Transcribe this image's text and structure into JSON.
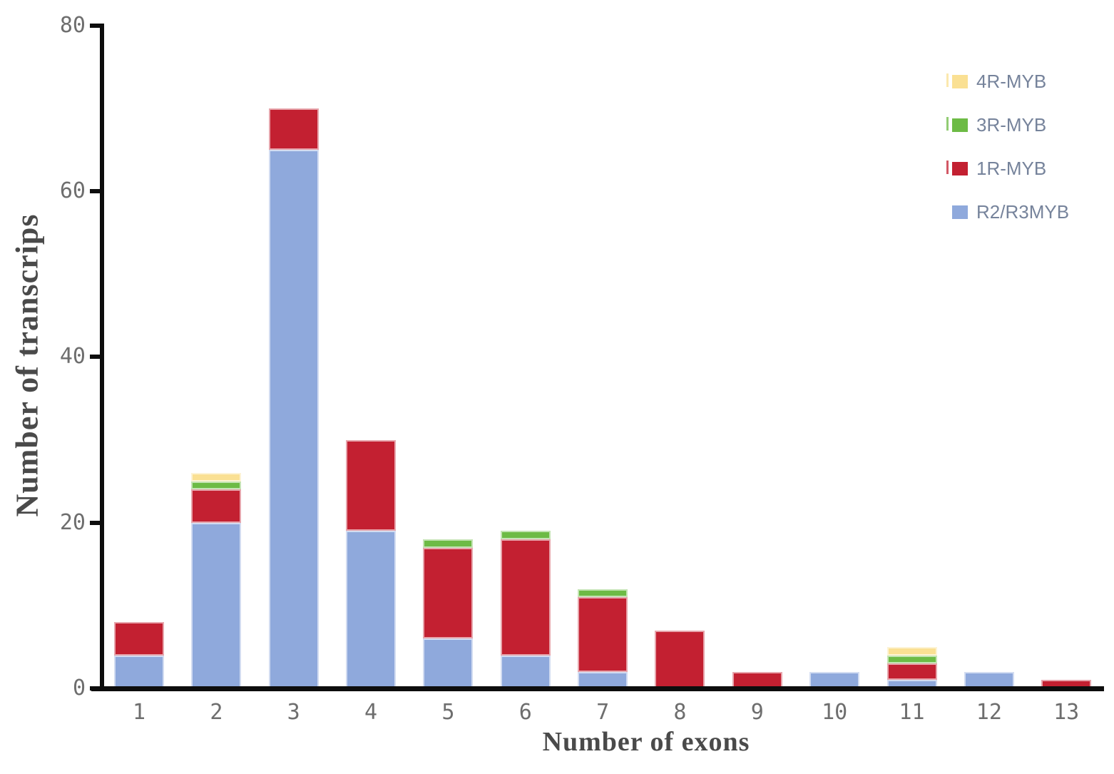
{
  "chart_data": {
    "type": "bar",
    "stacked": true,
    "title": "",
    "xlabel": "Number of exons",
    "ylabel": "Number of transcrips",
    "categories": [
      "1",
      "2",
      "3",
      "4",
      "5",
      "6",
      "7",
      "8",
      "9",
      "10",
      "11",
      "12",
      "13"
    ],
    "series": [
      {
        "name": "R2/R3MYB",
        "color": "#8FA9DC",
        "values": [
          4,
          20,
          65,
          19,
          6,
          4,
          2,
          0,
          0,
          2,
          1,
          2,
          0
        ]
      },
      {
        "name": "1R-MYB",
        "color": "#C32031",
        "values": [
          4,
          4,
          5,
          11,
          11,
          14,
          9,
          7,
          2,
          0,
          2,
          0,
          1
        ]
      },
      {
        "name": "3R-MYB",
        "color": "#6DBB45",
        "values": [
          0,
          1,
          0,
          0,
          1,
          1,
          1,
          0,
          0,
          0,
          1,
          0,
          0
        ]
      },
      {
        "name": "4R-MYB",
        "color": "#FAE093",
        "values": [
          0,
          1,
          0,
          0,
          0,
          0,
          0,
          0,
          0,
          0,
          1,
          0,
          0
        ]
      }
    ],
    "totals": [
      8,
      26,
      70,
      30,
      18,
      19,
      12,
      7,
      2,
      2,
      5,
      2,
      1
    ],
    "ylim": [
      0,
      80
    ],
    "yticks": [
      0,
      20,
      40,
      60,
      80
    ],
    "grid": false,
    "legend_position": "top-right",
    "legend_order": [
      "4R-MYB",
      "3R-MYB",
      "1R-MYB",
      "R2/R3MYB"
    ],
    "legend_pre_tick": {
      "4R-MYB": true,
      "3R-MYB": true,
      "1R-MYB": true,
      "R2/R3MYB": false
    }
  },
  "colors": {
    "background": "#ffffff",
    "axis_line": "#0d0d0d",
    "tick_label": "#6e6e6e",
    "axis_title": "#4a4a4a",
    "legend_text": "#76839b"
  }
}
